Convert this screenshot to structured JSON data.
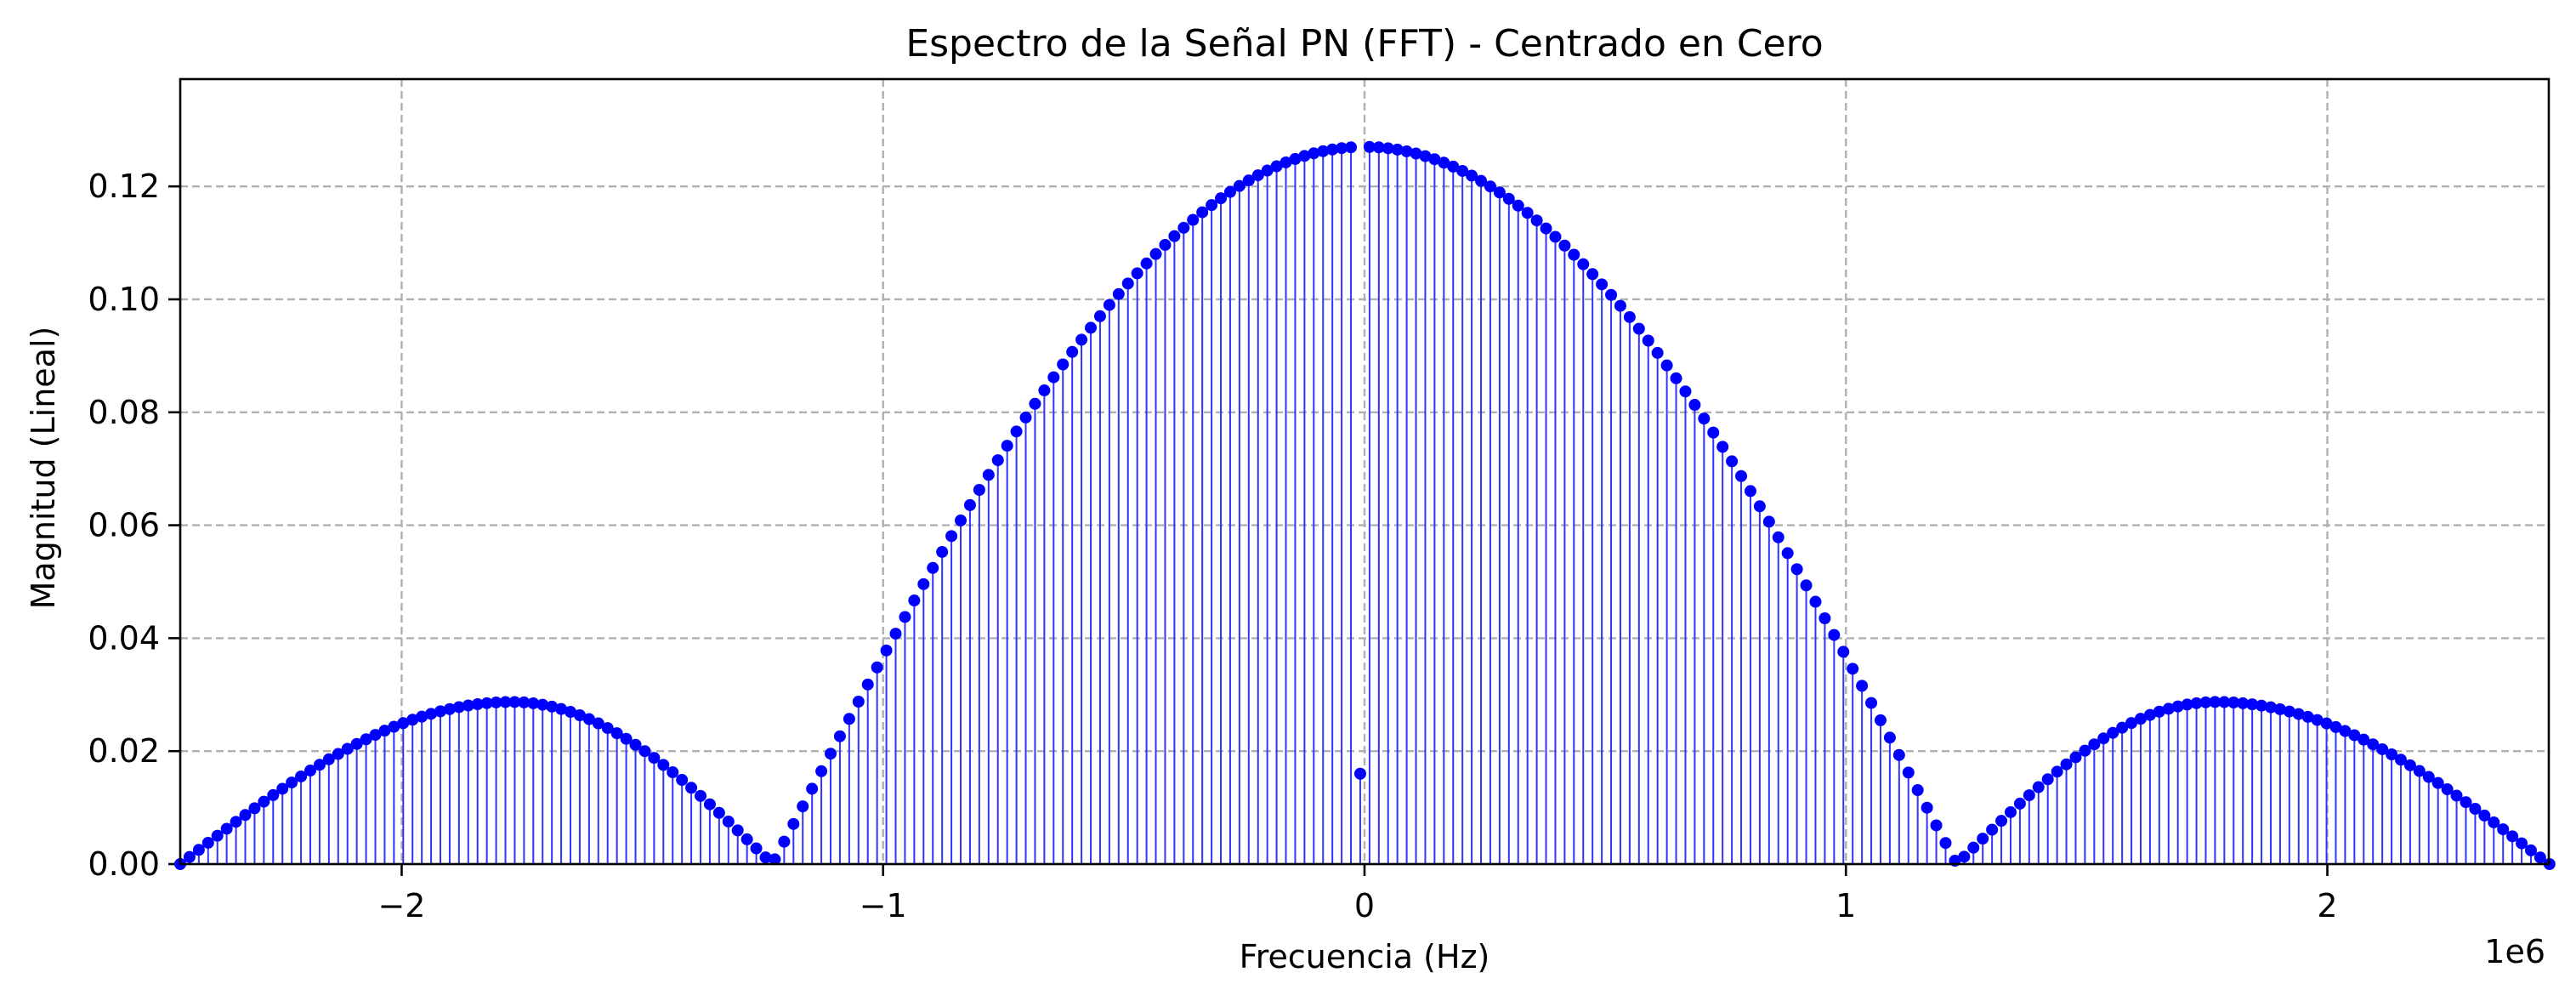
{
  "chart_data": {
    "type": "stem",
    "title": "Espectro de la Señal PN (FFT) - Centrado en Cero",
    "xlabel": "Frecuencia (Hz)",
    "ylabel": "Magnitud (Lineal)",
    "x_offset_text": "1e6",
    "x_scale": 1000000,
    "xlim": [
      -2460000,
      2460000
    ],
    "ylim": [
      0,
      0.139
    ],
    "x_ticks": [
      -2000000,
      -1000000,
      0,
      1000000,
      2000000
    ],
    "x_tick_labels": [
      "−2",
      "−1",
      "0",
      "1",
      "2"
    ],
    "y_ticks": [
      0.0,
      0.02,
      0.04,
      0.06,
      0.08,
      0.1,
      0.12
    ],
    "y_tick_labels": [
      "0.00",
      "0.02",
      "0.04",
      "0.06",
      "0.08",
      "0.10",
      "0.12"
    ],
    "grid": true,
    "legend": "none",
    "colors": {
      "marker": "#0000ff",
      "stem": "#3333ff",
      "baseline": "#0000ff"
    },
    "series": [
      {
        "x_start": -2460000,
        "x_end": 2460000,
        "x_step": 19300,
        "sidelobe_peak_hz": 1770000,
        "null_hz": 1230000,
        "main_peak": 0.127,
        "sidelobe_peak": 0.0287,
        "dc_value": 0.016
      }
    ]
  }
}
